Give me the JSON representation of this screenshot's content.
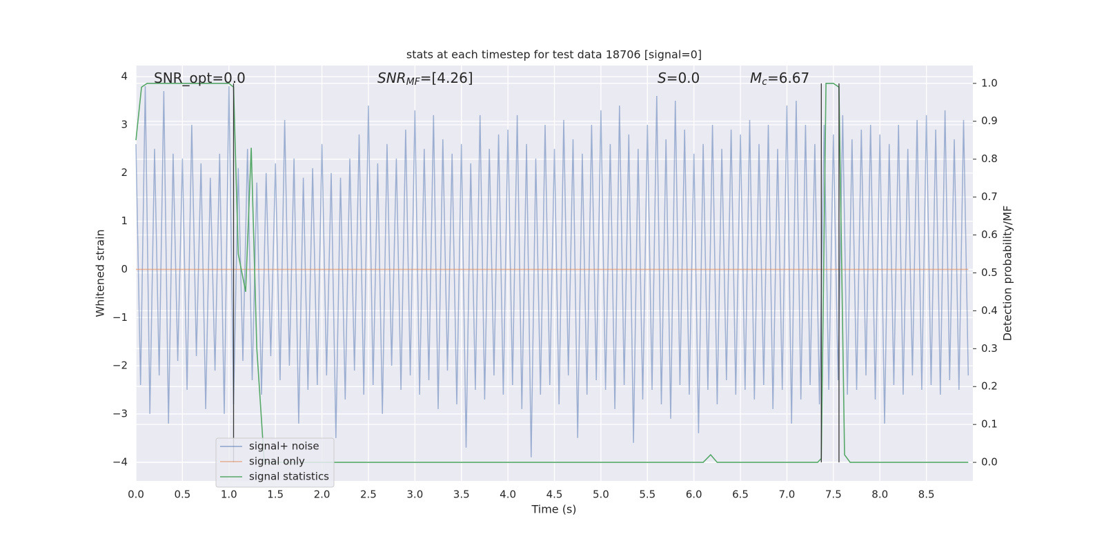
{
  "chart_data": {
    "type": "line",
    "title": "stats at each timestep for test data 18706 [signal=0]",
    "xlabel": "Time (s)",
    "ylabel": "Whitened strain",
    "y2label": "Detection probability/MF",
    "xlim": [
      0,
      9.0
    ],
    "ylim": [
      -4.39,
      4.23
    ],
    "y2lim": [
      -0.049,
      1.047
    ],
    "xticks": [
      {
        "value": 0,
        "label": "0.0"
      },
      0.5,
      {
        "value": 1,
        "label": "1.0"
      },
      1.5,
      {
        "value": 2,
        "label": "2.0"
      },
      2.5,
      {
        "value": 3,
        "label": "3.0"
      },
      3.5,
      {
        "value": 4,
        "label": "4.0"
      },
      4.5,
      {
        "value": 5,
        "label": "5.0"
      },
      5.5,
      {
        "value": 6,
        "label": "6.0"
      },
      6.5,
      {
        "value": 7,
        "label": "7.0"
      },
      7.5,
      {
        "value": 8,
        "label": "8.0"
      },
      8.5
    ],
    "yticks": [
      {
        "value": -4,
        "label": "−4"
      },
      {
        "value": -3,
        "label": "−3"
      },
      {
        "value": -2,
        "label": "−2"
      },
      {
        "value": -1,
        "label": "−1"
      },
      0,
      1,
      2,
      3,
      4
    ],
    "y2ticks": [
      {
        "value": 0,
        "label": "0.0"
      },
      0.1,
      0.2,
      0.3,
      0.4,
      0.5,
      0.6,
      0.7,
      0.8,
      0.9,
      {
        "value": 1,
        "label": "1.0"
      }
    ],
    "grid": true,
    "legend_loc": "lower left",
    "annotations": [
      {
        "text": "SNR_opt=0.0"
      },
      {
        "base": "SNR",
        "sub": "MF",
        "text": "=[4.26]"
      },
      {
        "base": "S",
        "text": "=0.0"
      },
      {
        "base": "M",
        "sub": "c",
        "text": "=6.67"
      }
    ],
    "vlines": {
      "color": "#333333",
      "x": [
        1.05,
        7.37,
        7.56
      ],
      "ymin": [
        0,
        0,
        0
      ],
      "ymax": [
        1.0,
        1.0,
        1.0
      ]
    },
    "series": [
      {
        "name": "signal+ noise",
        "color": "#4c72b0",
        "x": [
          0,
          0.05,
          0.1,
          0.15,
          0.2,
          0.25,
          0.3,
          0.35,
          0.4,
          0.45,
          0.5,
          0.55,
          0.6,
          0.65,
          0.7,
          0.75,
          0.8,
          0.85,
          0.9,
          0.95,
          1,
          1.05,
          1.1,
          1.15,
          1.2,
          1.25,
          1.3,
          1.35,
          1.4,
          1.45,
          1.5,
          1.55,
          1.6,
          1.65,
          1.7,
          1.75,
          1.8,
          1.85,
          1.9,
          1.95,
          2,
          2.05,
          2.1,
          2.15,
          2.2,
          2.25,
          2.3,
          2.35,
          2.4,
          2.45,
          2.5,
          2.55,
          2.6,
          2.65,
          2.7,
          2.75,
          2.8,
          2.85,
          2.9,
          2.95,
          3,
          3.05,
          3.1,
          3.15,
          3.2,
          3.25,
          3.3,
          3.35,
          3.4,
          3.45,
          3.5,
          3.55,
          3.6,
          3.65,
          3.7,
          3.75,
          3.8,
          3.85,
          3.9,
          3.95,
          4,
          4.05,
          4.1,
          4.15,
          4.2,
          4.25,
          4.3,
          4.35,
          4.4,
          4.45,
          4.5,
          4.55,
          4.6,
          4.65,
          4.7,
          4.75,
          4.8,
          4.85,
          4.9,
          4.95,
          5,
          5.05,
          5.1,
          5.15,
          5.2,
          5.25,
          5.3,
          5.35,
          5.4,
          5.45,
          5.5,
          5.55,
          5.6,
          5.65,
          5.7,
          5.75,
          5.8,
          5.85,
          5.9,
          5.95,
          6,
          6.05,
          6.1,
          6.15,
          6.2,
          6.25,
          6.3,
          6.35,
          6.4,
          6.45,
          6.5,
          6.55,
          6.6,
          6.65,
          6.7,
          6.75,
          6.8,
          6.85,
          6.9,
          6.95,
          7,
          7.05,
          7.1,
          7.15,
          7.2,
          7.25,
          7.3,
          7.35,
          7.4,
          7.45,
          7.5,
          7.55,
          7.6,
          7.65,
          7.7,
          7.75,
          7.8,
          7.85,
          7.9,
          7.95,
          8,
          8.05,
          8.1,
          8.15,
          8.2,
          8.25,
          8.3,
          8.35,
          8.4,
          8.45,
          8.5,
          8.55,
          8.6,
          8.65,
          8.7,
          8.75,
          8.8,
          8.85,
          8.9,
          8.95
        ],
        "values": [
          2.6,
          -2.4,
          3.8,
          -3.0,
          2.5,
          -2.2,
          3.7,
          -3.2,
          2.4,
          -1.9,
          2.3,
          -2.5,
          3.0,
          -1.8,
          2.2,
          -2.9,
          1.9,
          -2.1,
          2.4,
          -3.0,
          3.8,
          -2.8,
          2.1,
          -1.9,
          2.5,
          -2.3,
          1.8,
          -2.6,
          2.0,
          -1.8,
          2.2,
          -2.3,
          3.1,
          -2.0,
          2.3,
          -3.2,
          1.9,
          -2.5,
          2.1,
          -2.4,
          2.6,
          -2.2,
          2.0,
          -3.5,
          1.9,
          -2.7,
          2.3,
          -2.1,
          2.8,
          -2.6,
          3.4,
          -2.4,
          2.2,
          -3.0,
          2.6,
          -2.0,
          2.3,
          -2.5,
          2.9,
          -2.2,
          3.3,
          -2.6,
          2.5,
          -2.3,
          3.2,
          -2.9,
          2.7,
          -2.1,
          2.4,
          -2.8,
          2.6,
          -3.7,
          2.2,
          -2.5,
          3.2,
          -2.7,
          2.5,
          -2.2,
          2.8,
          -2.6,
          2.9,
          -2.4,
          3.2,
          -2.9,
          2.6,
          -3.9,
          2.3,
          -2.6,
          3.0,
          -2.4,
          2.5,
          -2.8,
          3.1,
          -2.2,
          2.7,
          -3.5,
          2.4,
          -2.6,
          3.0,
          -2.3,
          3.3,
          -2.5,
          2.6,
          -2.9,
          3.4,
          -2.4,
          2.8,
          -3.6,
          2.5,
          -2.7,
          3.0,
          -2.5,
          3.6,
          -2.8,
          2.7,
          -3.1,
          3.5,
          -2.4,
          2.9,
          -2.6,
          2.4,
          -3.4,
          2.6,
          -2.5,
          3.0,
          -2.8,
          2.5,
          -2.3,
          2.9,
          -2.6,
          2.8,
          -2.5,
          3.1,
          -2.7,
          2.6,
          -2.4,
          3.0,
          -2.9,
          2.5,
          -2.5,
          3.4,
          -3.2,
          3.5,
          -2.7,
          3.0,
          -2.4,
          2.6,
          -2.8,
          3.0,
          -2.5,
          2.8,
          -2.3,
          3.2,
          -2.6,
          2.7,
          -2.5,
          2.9,
          -2.2,
          3.0,
          -2.7,
          2.8,
          -3.2,
          2.6,
          -2.4,
          3.0,
          -2.6,
          2.5,
          -2.2,
          3.1,
          -2.5,
          3.2,
          -2.4,
          2.9,
          -2.6,
          3.3,
          -2.3,
          2.7,
          -2.5,
          3.1,
          -2.2
        ]
      },
      {
        "name": "signal only",
        "color": "#dd8452",
        "x": [
          0,
          8.95
        ],
        "values": [
          0,
          0
        ]
      },
      {
        "name": "signal statistics",
        "color": "#55a868",
        "axis": "y2",
        "x": [
          0,
          0.06,
          0.12,
          1.0,
          1.05,
          1.1,
          1.18,
          1.24,
          1.3,
          1.38,
          6.1,
          6.18,
          6.25,
          7.33,
          7.37,
          7.42,
          7.5,
          7.56,
          7.62,
          7.68,
          8.95
        ],
        "values": [
          0.85,
          0.99,
          1.0,
          1.0,
          0.99,
          0.55,
          0.45,
          0.83,
          0.3,
          0.0,
          0.0,
          0.02,
          0.0,
          0.0,
          0.01,
          1.0,
          1.0,
          0.99,
          0.02,
          0.0,
          0.0
        ]
      }
    ]
  }
}
